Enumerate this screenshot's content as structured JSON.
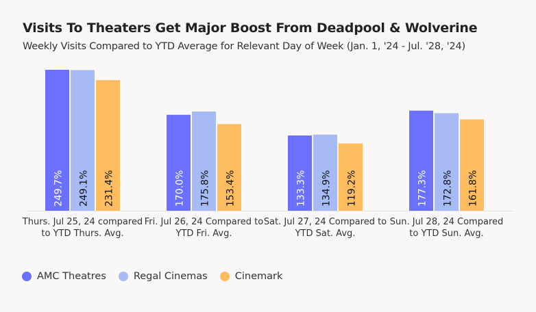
{
  "chart_data": {
    "type": "bar",
    "title": "Visits To Theaters Get Major Boost From Deadpool & Wolverine",
    "subtitle": "Weekly Visits Compared to YTD Average for Relevant Day of Week (Jan. 1, '24 - Jul. '28, '24)",
    "categories": [
      "Thurs. Jul 25, 24 compared to YTD Thurs. Avg.",
      "Fri. Jul 26, 24 Compared to YTD Fri. Avg.",
      "Sat. Jul 27, 24 Compared to YTD Sat. Avg.",
      "Sun. Jul 28, 24 Compared to YTD Sun. Avg."
    ],
    "series": [
      {
        "name": "AMC Theatres",
        "color": "#6b70ff",
        "label_color": "#ffffff",
        "values": [
          249.7,
          170.0,
          133.3,
          177.3
        ]
      },
      {
        "name": "Regal Cinemas",
        "color": "#a6bbf6",
        "label_color": "#111111",
        "values": [
          249.1,
          175.8,
          134.9,
          172.8
        ]
      },
      {
        "name": "Cinemark",
        "color": "#ffbd5f",
        "label_color": "#111111",
        "values": [
          231.4,
          153.4,
          119.2,
          161.8
        ]
      }
    ],
    "value_suffix": "%",
    "ylim": [
      0,
      250
    ],
    "grid": false,
    "legend": "bottom-left"
  }
}
